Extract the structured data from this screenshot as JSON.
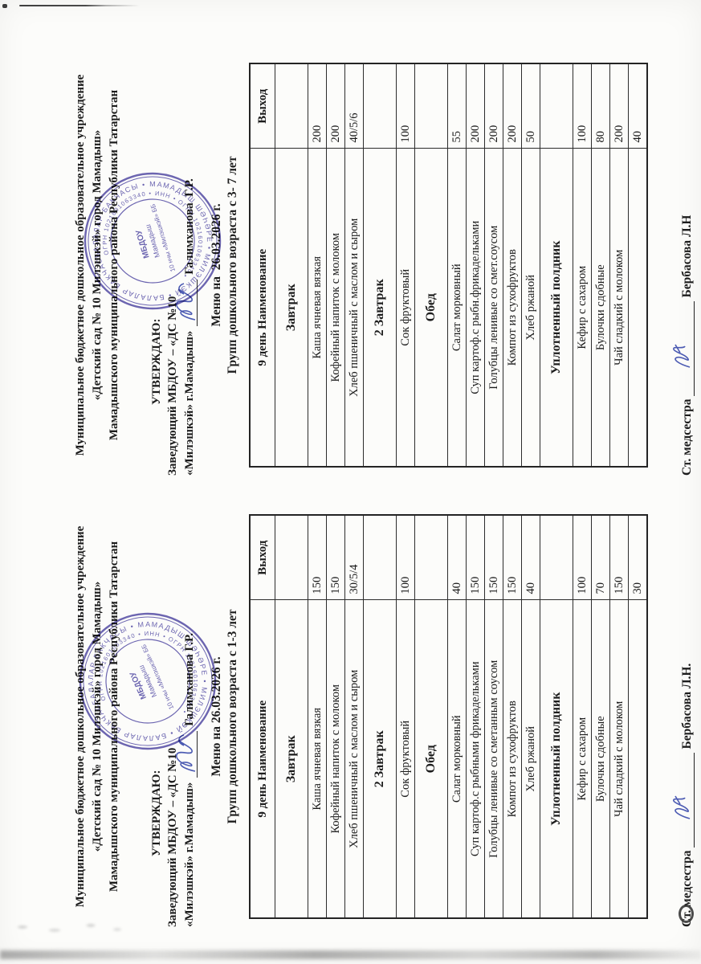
{
  "document": {
    "colors": {
      "ink": "#1c1c1c",
      "stamp": "#4b43a0",
      "signature": "#3949ab",
      "paper": "#fcfcfa"
    },
    "stamp": {
      "ring_text": "БАЛАЛАР БАКЧАСЫ • МАМАДЫШ ШӘҺӘРЕ • МИЛЭШКЭЙ • БАЛАЛАР БАКЧАСЫ • МАМАДЫШ ШӘҺӘРЕ •",
      "number_text": "ОГРН 1021601063340 • ИНН • ОГРН 1021601063340 •",
      "center_lines": [
        "МБДОУ",
        "Мамадыш",
        "10 нчы «Милэшкэй» ББ"
      ]
    },
    "menus": [
      {
        "org_lines": [
          "Муниципальное бюджетное дошкольное образовательное учреждение",
          "«Детский сад № 10 Милэшкэй» город Мамадыш»",
          "Мамадышского муниципального района Республики Татарстан"
        ],
        "approve": {
          "label": "УТВЕРЖДАЮ:",
          "line1": "Заведующий МБДОУ – «ДС №10",
          "line2": "«Милэшкэй» г.Мамадыш»",
          "signer": "Галимханова Г.Р."
        },
        "title": "Меню на 26.03.2026 г.",
        "subtitle": "Групп дошкольного возраста с 1-3 лет",
        "table": {
          "col_name": "9 день Наименование",
          "col_out": "Выход",
          "rows": [
            {
              "type": "section",
              "name": "Завтрак",
              "out": ""
            },
            {
              "type": "item",
              "name": "Каша ячневая вязкая",
              "out": "150"
            },
            {
              "type": "item",
              "name": "Кофейный напиток с молоком",
              "out": "150"
            },
            {
              "type": "item",
              "name": "Хлеб пшеничный с маслом и сыром",
              "out": "30/5/4"
            },
            {
              "type": "section",
              "name": "2 Завтрак",
              "out": ""
            },
            {
              "type": "item",
              "name": "Сок фруктовый",
              "out": "100"
            },
            {
              "type": "section",
              "name": "Обед",
              "out": ""
            },
            {
              "type": "item",
              "name": "Салат морковный",
              "out": "40"
            },
            {
              "type": "item",
              "name": "Суп картоф.с рыбными фрикадельками",
              "out": "150"
            },
            {
              "type": "item",
              "name": "Голубцы ленивые со сметанным соусом",
              "out": "150"
            },
            {
              "type": "item",
              "name": "Компот из сухофруктов",
              "out": "150"
            },
            {
              "type": "item",
              "name": "Хлеб ржаной",
              "out": "40"
            },
            {
              "type": "section",
              "name": "Уплотненный полдник",
              "out": ""
            },
            {
              "type": "item",
              "name": "Кефир с сахаром",
              "out": "100"
            },
            {
              "type": "item",
              "name": "Булочки сдобные",
              "out": "70"
            },
            {
              "type": "item",
              "name": "Чай сладкий с молоком",
              "out": "150"
            },
            {
              "type": "item",
              "name": "",
              "out": "30"
            }
          ]
        },
        "footer": {
          "label": "Ст. медсестра",
          "name": "Бербасова Л.Н."
        }
      },
      {
        "org_lines": [
          "Муниципальное бюджетное дошкольное образовательное учреждение",
          "«Детский сад № 10 Милэшкэй» город Мамадыш»",
          "Мамадышского муниципального района Республики Татарстан"
        ],
        "approve": {
          "label": "УТВЕРЖДАЮ:",
          "line1": "Заведующий МБДОУ – «ДС №10",
          "line2": "«Милэшкэй» г.Мамадыш»",
          "signer": "Галимханова  Г.Р."
        },
        "title": "Меню на  26.03.2026 г.",
        "subtitle": "Групп дошкольного возраста с 3- 7 лет",
        "table": {
          "col_name": "9 день Наименование",
          "col_out": "Выход",
          "rows": [
            {
              "type": "section",
              "name": "Завтрак",
              "out": ""
            },
            {
              "type": "item",
              "name": "Каша ячневая вязкая",
              "out": "200"
            },
            {
              "type": "item",
              "name": "Кофейный напиток с молоком",
              "out": "200"
            },
            {
              "type": "item",
              "name": "Хлеб пшеничный с маслом и сыром",
              "out": "40/5/6"
            },
            {
              "type": "section",
              "name": "2 Завтрак",
              "out": ""
            },
            {
              "type": "item",
              "name": "Сок фруктовый",
              "out": "100"
            },
            {
              "type": "section",
              "name": "Обед",
              "out": ""
            },
            {
              "type": "item",
              "name": "Салат морковный",
              "out": "55"
            },
            {
              "type": "item",
              "name": "Суп картоф.с рыбн.фрикадельками",
              "out": "200"
            },
            {
              "type": "item",
              "name": "Голубцы ленивые со смет.соусом",
              "out": "200"
            },
            {
              "type": "item",
              "name": "Компот из сухофруктов",
              "out": "200"
            },
            {
              "type": "item",
              "name": "Хлеб ржаной",
              "out": "50"
            },
            {
              "type": "section",
              "name": "Уплотненный полдник",
              "out": ""
            },
            {
              "type": "item",
              "name": "Кефир с сахаром",
              "out": "100"
            },
            {
              "type": "item",
              "name": "Булочки сдобные",
              "out": "80"
            },
            {
              "type": "item",
              "name": "Чай сладкий с молоком",
              "out": "200"
            },
            {
              "type": "item",
              "name": "",
              "out": "40"
            }
          ]
        },
        "footer": {
          "label": "Ст. медсестра",
          "name": "Бербасова Л.Н"
        }
      }
    ]
  }
}
